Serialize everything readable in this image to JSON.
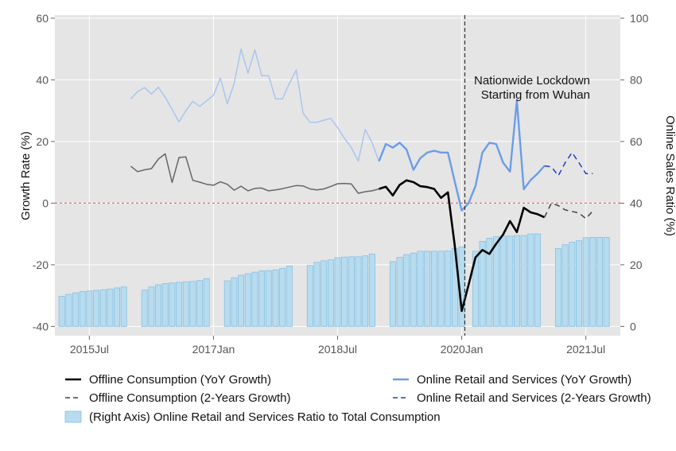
{
  "chart_data": {
    "type": "line+bar",
    "title": "",
    "xlabel": "",
    "ylabel_left": "Growth Rate (%)",
    "ylabel_right": "Online Sales Ratio (%)",
    "ylim_left": [
      -43,
      61
    ],
    "ylim_right": [
      -3,
      101
    ],
    "xlim": [
      "2015-02",
      "2021-12"
    ],
    "grid": true,
    "x_ticks": [
      {
        "date": "2015-07",
        "label": "2015Jul"
      },
      {
        "date": "2017-01",
        "label": "2017Jan"
      },
      {
        "date": "2018-07",
        "label": "2018Jul"
      },
      {
        "date": "2020-01",
        "label": "2020Jan"
      },
      {
        "date": "2021-07",
        "label": "2021Jul"
      }
    ],
    "y_ticks_left": [
      -40,
      -20,
      0,
      20,
      40,
      60
    ],
    "y_ticks_right": [
      0,
      20,
      40,
      60,
      80,
      100
    ],
    "reference_line": {
      "axis": "left",
      "y": 0,
      "color": "#e07060"
    },
    "event_line": {
      "date": "2020-01",
      "label_lines": [
        "Nationwide Lockdown",
        "Starting from Wuhan"
      ]
    },
    "series": [
      {
        "name": "(Right Axis) Online Retail and Services Ratio to Total Consumption",
        "kind": "bar",
        "axis": "right",
        "color": "#b7dcf0",
        "edge": "#87bfe0",
        "points": [
          [
            "2015-03",
            9.8
          ],
          [
            "2015-04",
            10.4
          ],
          [
            "2015-05",
            10.9
          ],
          [
            "2015-06",
            11.3
          ],
          [
            "2015-07",
            11.5
          ],
          [
            "2015-08",
            11.7
          ],
          [
            "2015-09",
            11.9
          ],
          [
            "2015-10",
            12.1
          ],
          [
            "2015-11",
            12.5
          ],
          [
            "2015-12",
            12.8
          ],
          [
            "2016-03",
            11.8
          ],
          [
            "2016-04",
            12.8
          ],
          [
            "2016-05",
            13.5
          ],
          [
            "2016-06",
            13.9
          ],
          [
            "2016-07",
            14.1
          ],
          [
            "2016-08",
            14.3
          ],
          [
            "2016-09",
            14.5
          ],
          [
            "2016-10",
            14.6
          ],
          [
            "2016-11",
            14.9
          ],
          [
            "2016-12",
            15.5
          ],
          [
            "2017-03",
            14.8
          ],
          [
            "2017-04",
            15.8
          ],
          [
            "2017-05",
            16.6
          ],
          [
            "2017-06",
            17.1
          ],
          [
            "2017-07",
            17.6
          ],
          [
            "2017-08",
            18
          ],
          [
            "2017-09",
            18.1
          ],
          [
            "2017-10",
            18.3
          ],
          [
            "2017-11",
            18.8
          ],
          [
            "2017-12",
            19.6
          ],
          [
            "2018-03",
            19.8
          ],
          [
            "2018-04",
            20.8
          ],
          [
            "2018-05",
            21.3
          ],
          [
            "2018-06",
            21.6
          ],
          [
            "2018-07",
            22.3
          ],
          [
            "2018-08",
            22.5
          ],
          [
            "2018-09",
            22.6
          ],
          [
            "2018-10",
            22.6
          ],
          [
            "2018-11",
            22.9
          ],
          [
            "2018-12",
            23.5
          ],
          [
            "2019-03",
            21
          ],
          [
            "2019-04",
            22.4
          ],
          [
            "2019-05",
            23.3
          ],
          [
            "2019-06",
            23.8
          ],
          [
            "2019-07",
            24.4
          ],
          [
            "2019-08",
            24.4
          ],
          [
            "2019-09",
            24.4
          ],
          [
            "2019-10",
            24.4
          ],
          [
            "2019-11",
            24.5
          ],
          [
            "2019-12",
            25.3
          ],
          [
            "2020-01",
            25.8
          ],
          [
            "2020-03",
            24.4
          ],
          [
            "2020-04",
            27.6
          ],
          [
            "2020-05",
            28.6
          ],
          [
            "2020-06",
            29.1
          ],
          [
            "2020-07",
            29.3
          ],
          [
            "2020-08",
            29.3
          ],
          [
            "2020-09",
            29.5
          ],
          [
            "2020-10",
            29.5
          ],
          [
            "2020-11",
            30
          ],
          [
            "2020-12",
            30
          ],
          [
            "2021-03",
            25.3
          ],
          [
            "2021-04",
            26.5
          ],
          [
            "2021-05",
            27.3
          ],
          [
            "2021-06",
            27.8
          ],
          [
            "2021-07",
            28.8
          ],
          [
            "2021-08",
            28.9
          ],
          [
            "2021-09",
            28.9
          ],
          [
            "2021-10",
            28.9
          ]
        ]
      },
      {
        "name": "Online Retail and Services (YoY Growth)",
        "kind": "line",
        "axis": "right",
        "color": "#a9c6ee",
        "width": 1.5,
        "points": [
          [
            "2016-01",
            73.8
          ],
          [
            "2016-02",
            76.2
          ],
          [
            "2016-03",
            77.5
          ],
          [
            "2016-04",
            75.4
          ],
          [
            "2016-05",
            77.6
          ],
          [
            "2016-06",
            74.4
          ],
          [
            "2016-07",
            70.4
          ],
          [
            "2016-08",
            66.4
          ],
          [
            "2016-09",
            70
          ],
          [
            "2016-10",
            73
          ],
          [
            "2016-11",
            71.4
          ],
          [
            "2016-12",
            73.2
          ],
          [
            "2017-01",
            75
          ],
          [
            "2017-02",
            80.6
          ],
          [
            "2017-03",
            72.2
          ],
          [
            "2017-04",
            78.8
          ],
          [
            "2017-05",
            90
          ],
          [
            "2017-06",
            82.2
          ],
          [
            "2017-07",
            89.8
          ],
          [
            "2017-08",
            81.3
          ],
          [
            "2017-09",
            81.3
          ],
          [
            "2017-10",
            73.8
          ],
          [
            "2017-11",
            73.8
          ],
          [
            "2017-12",
            78.8
          ],
          [
            "2018-01",
            83.2
          ],
          [
            "2018-02",
            69.2
          ],
          [
            "2018-03",
            66.2
          ],
          [
            "2018-04",
            66.2
          ],
          [
            "2018-05",
            66.9
          ],
          [
            "2018-06",
            67.5
          ],
          [
            "2018-07",
            64.5
          ],
          [
            "2018-08",
            61
          ],
          [
            "2018-09",
            58
          ],
          [
            "2018-10",
            53.6
          ],
          [
            "2018-11",
            63.9
          ],
          [
            "2018-12",
            59.6
          ],
          [
            "2019-01",
            53.6
          ]
        ]
      },
      {
        "name": "Online Retail and Services (YoY Growth)",
        "kind": "line",
        "axis": "right",
        "color": "#6a9de8",
        "width": 2.4,
        "points": [
          [
            "2019-01",
            53.6
          ],
          [
            "2019-02",
            59.2
          ],
          [
            "2019-03",
            58
          ],
          [
            "2019-04",
            59.6
          ],
          [
            "2019-05",
            57.4
          ],
          [
            "2019-06",
            50.8
          ],
          [
            "2019-07",
            54.6
          ],
          [
            "2019-08",
            56.4
          ],
          [
            "2019-09",
            57
          ],
          [
            "2019-10",
            56.4
          ],
          [
            "2019-11",
            56.4
          ],
          [
            "2019-12",
            46.9
          ],
          [
            "2020-01",
            37.6
          ],
          [
            "2020-02",
            40
          ],
          [
            "2020-03",
            45.6
          ],
          [
            "2020-04",
            56.4
          ],
          [
            "2020-05",
            59.6
          ],
          [
            "2020-06",
            59.2
          ],
          [
            "2020-07",
            53.1
          ],
          [
            "2020-08",
            50.2
          ],
          [
            "2020-09",
            73.3
          ],
          [
            "2020-10",
            44.5
          ],
          [
            "2020-11",
            47.5
          ],
          [
            "2020-12",
            49.6
          ],
          [
            "2021-01",
            52.1
          ]
        ]
      },
      {
        "name": "Online Retail and Services (2-Years Growth)",
        "kind": "line",
        "axis": "right",
        "color": "#1f3fbf",
        "width": 1.5,
        "dash": "7,5",
        "points": [
          [
            "2021-01",
            52.1
          ],
          [
            "2021-02",
            51.8
          ],
          [
            "2021-03",
            48.9
          ],
          [
            "2021-04",
            53.1
          ],
          [
            "2021-05",
            56.4
          ],
          [
            "2021-06",
            53.1
          ],
          [
            "2021-07",
            49.6
          ],
          [
            "2021-08",
            49.6
          ]
        ]
      },
      {
        "name": "Offline Consumption (YoY Growth)",
        "kind": "line",
        "axis": "left",
        "color": "#666666",
        "width": 1.5,
        "points": [
          [
            "2016-01",
            12
          ],
          [
            "2016-02",
            10.2
          ],
          [
            "2016-03",
            10.8
          ],
          [
            "2016-04",
            11.2
          ],
          [
            "2016-05",
            14.3
          ],
          [
            "2016-06",
            16
          ],
          [
            "2016-07",
            6.7
          ],
          [
            "2016-08",
            14.8
          ],
          [
            "2016-09",
            15
          ],
          [
            "2016-10",
            7.4
          ],
          [
            "2016-11",
            6.8
          ],
          [
            "2016-12",
            6.1
          ],
          [
            "2017-01",
            5.8
          ],
          [
            "2017-02",
            6.9
          ],
          [
            "2017-03",
            6.1
          ],
          [
            "2017-04",
            4.2
          ],
          [
            "2017-05",
            5.5
          ],
          [
            "2017-06",
            4
          ],
          [
            "2017-07",
            4.8
          ],
          [
            "2017-08",
            4.9
          ],
          [
            "2017-09",
            4
          ],
          [
            "2017-10",
            4.3
          ],
          [
            "2017-11",
            4.7
          ],
          [
            "2017-12",
            5.2
          ],
          [
            "2018-01",
            5.7
          ],
          [
            "2018-02",
            5.6
          ],
          [
            "2018-03",
            4.6
          ],
          [
            "2018-04",
            4.3
          ],
          [
            "2018-05",
            4.6
          ],
          [
            "2018-06",
            5.4
          ],
          [
            "2018-07",
            6.3
          ],
          [
            "2018-08",
            6.4
          ],
          [
            "2018-09",
            6.2
          ],
          [
            "2018-10",
            3.2
          ],
          [
            "2018-11",
            3.7
          ],
          [
            "2018-12",
            4
          ],
          [
            "2019-01",
            4.6
          ]
        ]
      },
      {
        "name": "Offline Consumption (YoY Growth)",
        "kind": "line",
        "axis": "left",
        "color": "#000000",
        "width": 2.6,
        "points": [
          [
            "2019-01",
            4.6
          ],
          [
            "2019-02",
            5.3
          ],
          [
            "2019-03",
            2.5
          ],
          [
            "2019-04",
            5.9
          ],
          [
            "2019-05",
            7.4
          ],
          [
            "2019-06",
            6.8
          ],
          [
            "2019-07",
            5.5
          ],
          [
            "2019-08",
            5.2
          ],
          [
            "2019-09",
            4.6
          ],
          [
            "2019-10",
            1.7
          ],
          [
            "2019-11",
            3.5
          ],
          [
            "2019-12",
            -14
          ],
          [
            "2020-01",
            -35
          ],
          [
            "2020-02",
            -26.5
          ],
          [
            "2020-03",
            -17.6
          ],
          [
            "2020-04",
            -15.2
          ],
          [
            "2020-05",
            -16.5
          ],
          [
            "2020-06",
            -13.2
          ],
          [
            "2020-07",
            -10.2
          ],
          [
            "2020-08",
            -5.8
          ],
          [
            "2020-09",
            -9.4
          ],
          [
            "2020-10",
            -1.5
          ],
          [
            "2020-11",
            -3
          ],
          [
            "2020-12",
            -3.6
          ],
          [
            "2021-01",
            -4.6
          ]
        ]
      },
      {
        "name": "Offline Consumption (2-Years Growth)",
        "kind": "line",
        "axis": "left",
        "color": "#444444",
        "width": 1.5,
        "dash": "7,5",
        "points": [
          [
            "2021-01",
            -4.6
          ],
          [
            "2021-02",
            0
          ],
          [
            "2021-03",
            -0.8
          ],
          [
            "2021-04",
            -2.2
          ],
          [
            "2021-05",
            -2.7
          ],
          [
            "2021-06",
            -3.2
          ],
          [
            "2021-07",
            -5
          ],
          [
            "2021-08",
            -2.6
          ]
        ]
      }
    ],
    "legend": {
      "placement": "bottom",
      "entries": [
        {
          "label": "Offline Consumption (YoY Growth)",
          "style": "solid",
          "color": "#000000"
        },
        {
          "label": "Online Retail and Services (YoY Growth)",
          "style": "solid",
          "color": "#6a9de8"
        },
        {
          "label": "Offline Consumption (2-Years Growth)",
          "style": "dash",
          "color": "#444444"
        },
        {
          "label": "Online Retail and Services (2-Years Growth)",
          "style": "dash",
          "color": "#1f3fbf"
        },
        {
          "label": "(Right Axis) Online Retail and Services Ratio to Total Consumption",
          "style": "bar",
          "color": "#b7dcf0"
        }
      ]
    },
    "colors": {
      "plot_background": "#e5e5e5",
      "grid": "#ffffff",
      "event_line": "#333333"
    }
  }
}
